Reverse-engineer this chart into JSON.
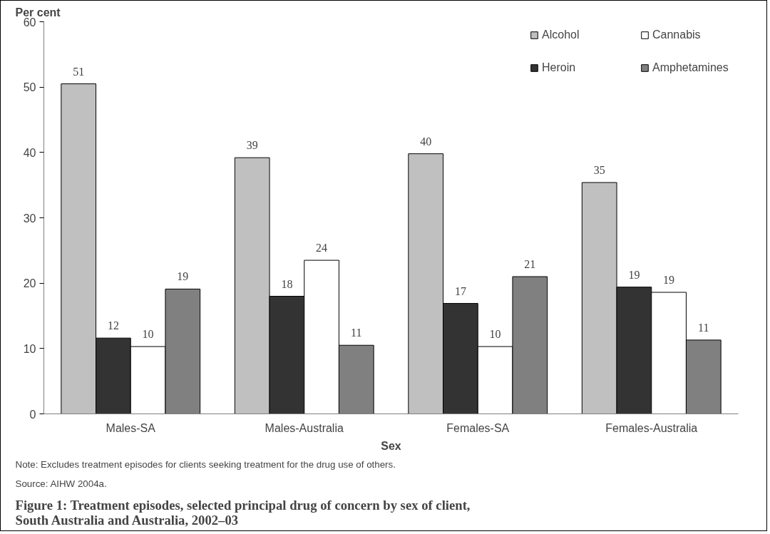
{
  "chart_data": {
    "type": "bar",
    "title": "Figure 1: Treatment episodes, selected principal drug of concern by sex of client, South Australia and Australia, 2002–03",
    "xlabel": "Sex",
    "ylabel": "Per cent",
    "categories": [
      "Males-SA",
      "Males-Australia",
      "Females-SA",
      "Females-Australia"
    ],
    "series": [
      {
        "name": "Alcohol",
        "color": "#c0c0c0",
        "values": [
          50.5,
          39.2,
          39.8,
          35.4
        ],
        "value_labels": [
          "51",
          "39",
          "40",
          "35"
        ]
      },
      {
        "name": "Heroin",
        "color": "#333333",
        "values": [
          11.6,
          18.0,
          16.9,
          19.4
        ],
        "value_labels": [
          "12",
          "18",
          "17",
          "19"
        ]
      },
      {
        "name": "Cannabis",
        "color": "#ffffff",
        "values": [
          10.3,
          23.5,
          10.3,
          18.6
        ],
        "value_labels": [
          "10",
          "24",
          "10",
          "19"
        ]
      },
      {
        "name": "Amphetamines",
        "color": "#808080",
        "values": [
          19.1,
          10.5,
          21.0,
          11.3
        ],
        "value_labels": [
          "19",
          "11",
          "21",
          "11"
        ]
      }
    ],
    "ylim": [
      0,
      60
    ],
    "yticks": [
      0,
      10,
      20,
      30,
      40,
      50,
      60
    ],
    "grid": false,
    "legend": "top right",
    "annotations": [
      "Note: Excludes treatment episodes for clients seeking treatment for the drug use of others.",
      "Source: AIHW 2004a."
    ]
  }
}
